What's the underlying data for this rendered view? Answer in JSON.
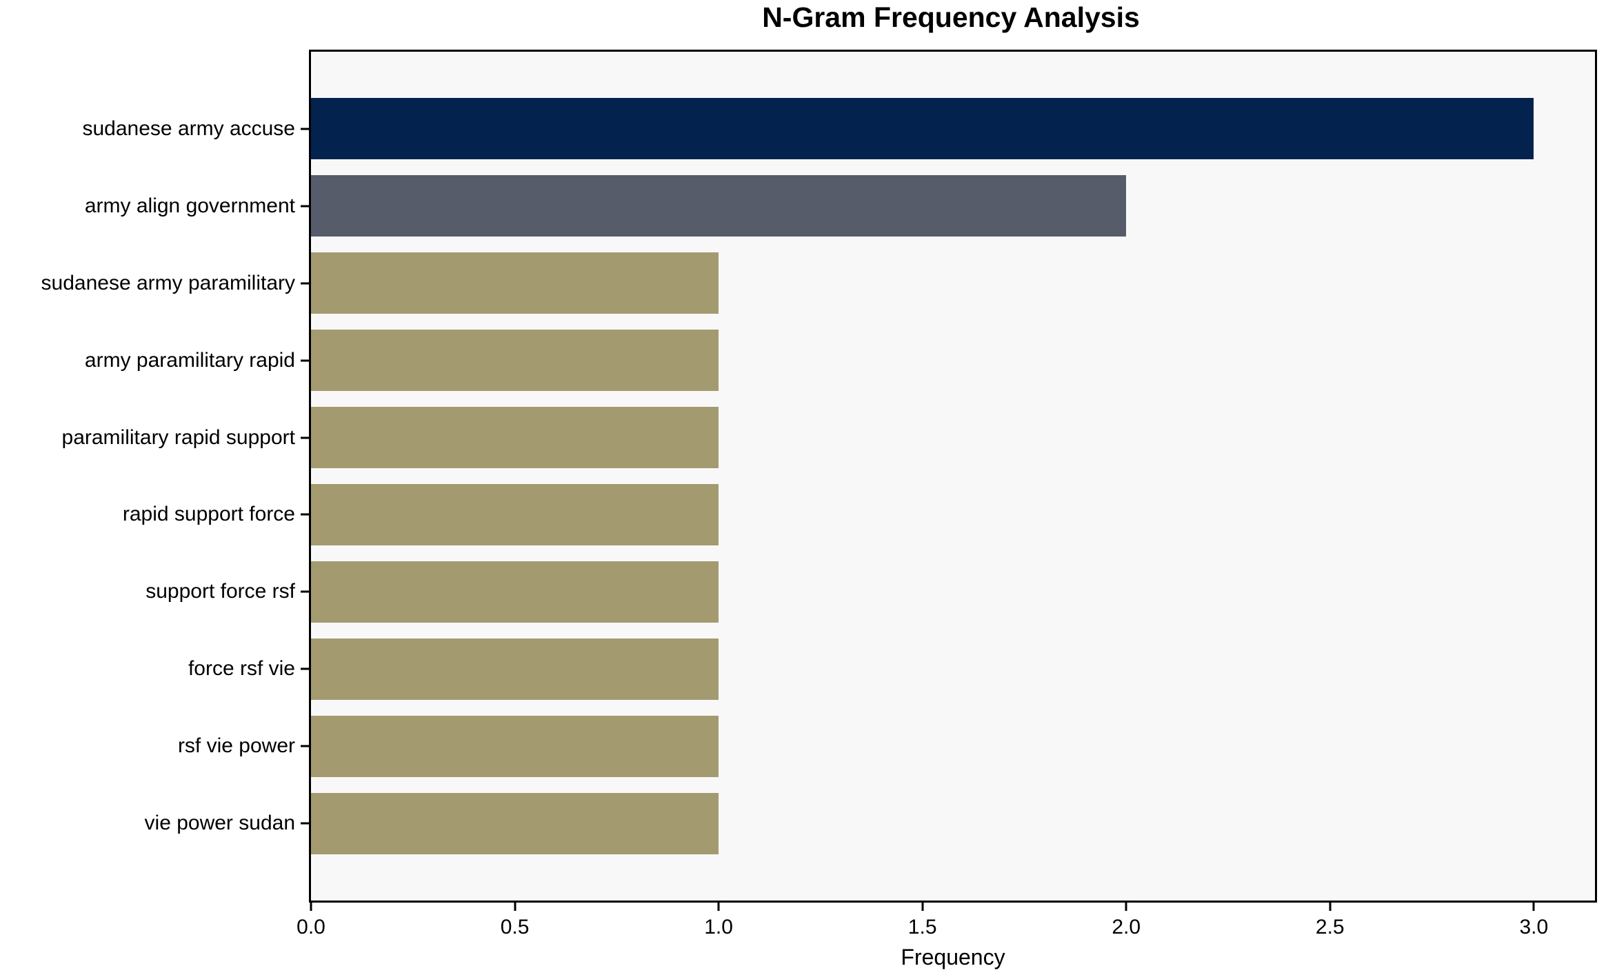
{
  "chart_data": {
    "type": "bar",
    "orientation": "horizontal",
    "title": "N-Gram Frequency Analysis",
    "xlabel": "Frequency",
    "ylabel": "",
    "categories": [
      "sudanese army accuse",
      "army align government",
      "sudanese army paramilitary",
      "army paramilitary rapid",
      "paramilitary rapid support",
      "rapid support force",
      "support force rsf",
      "force rsf vie",
      "rsf vie power",
      "vie power sudan"
    ],
    "values": [
      3,
      2,
      1,
      1,
      1,
      1,
      1,
      1,
      1,
      1
    ],
    "bar_colors": [
      "#04224e",
      "#575c6b",
      "#a39a70",
      "#a39a70",
      "#a39a70",
      "#a39a70",
      "#a39a70",
      "#a39a70",
      "#a39a70",
      "#a39a70"
    ],
    "xlim": [
      0,
      3.15
    ],
    "xticks": [
      0.0,
      0.5,
      1.0,
      1.5,
      2.0,
      2.5,
      3.0
    ],
    "xtick_labels": [
      "0.0",
      "0.5",
      "1.0",
      "1.5",
      "2.0",
      "2.5",
      "3.0"
    ],
    "grid": false,
    "legend": null,
    "colors": {
      "plot_background": "#f8f8f8",
      "figure_background": "#ffffff",
      "spine": "#000000",
      "text": "#000000"
    }
  }
}
